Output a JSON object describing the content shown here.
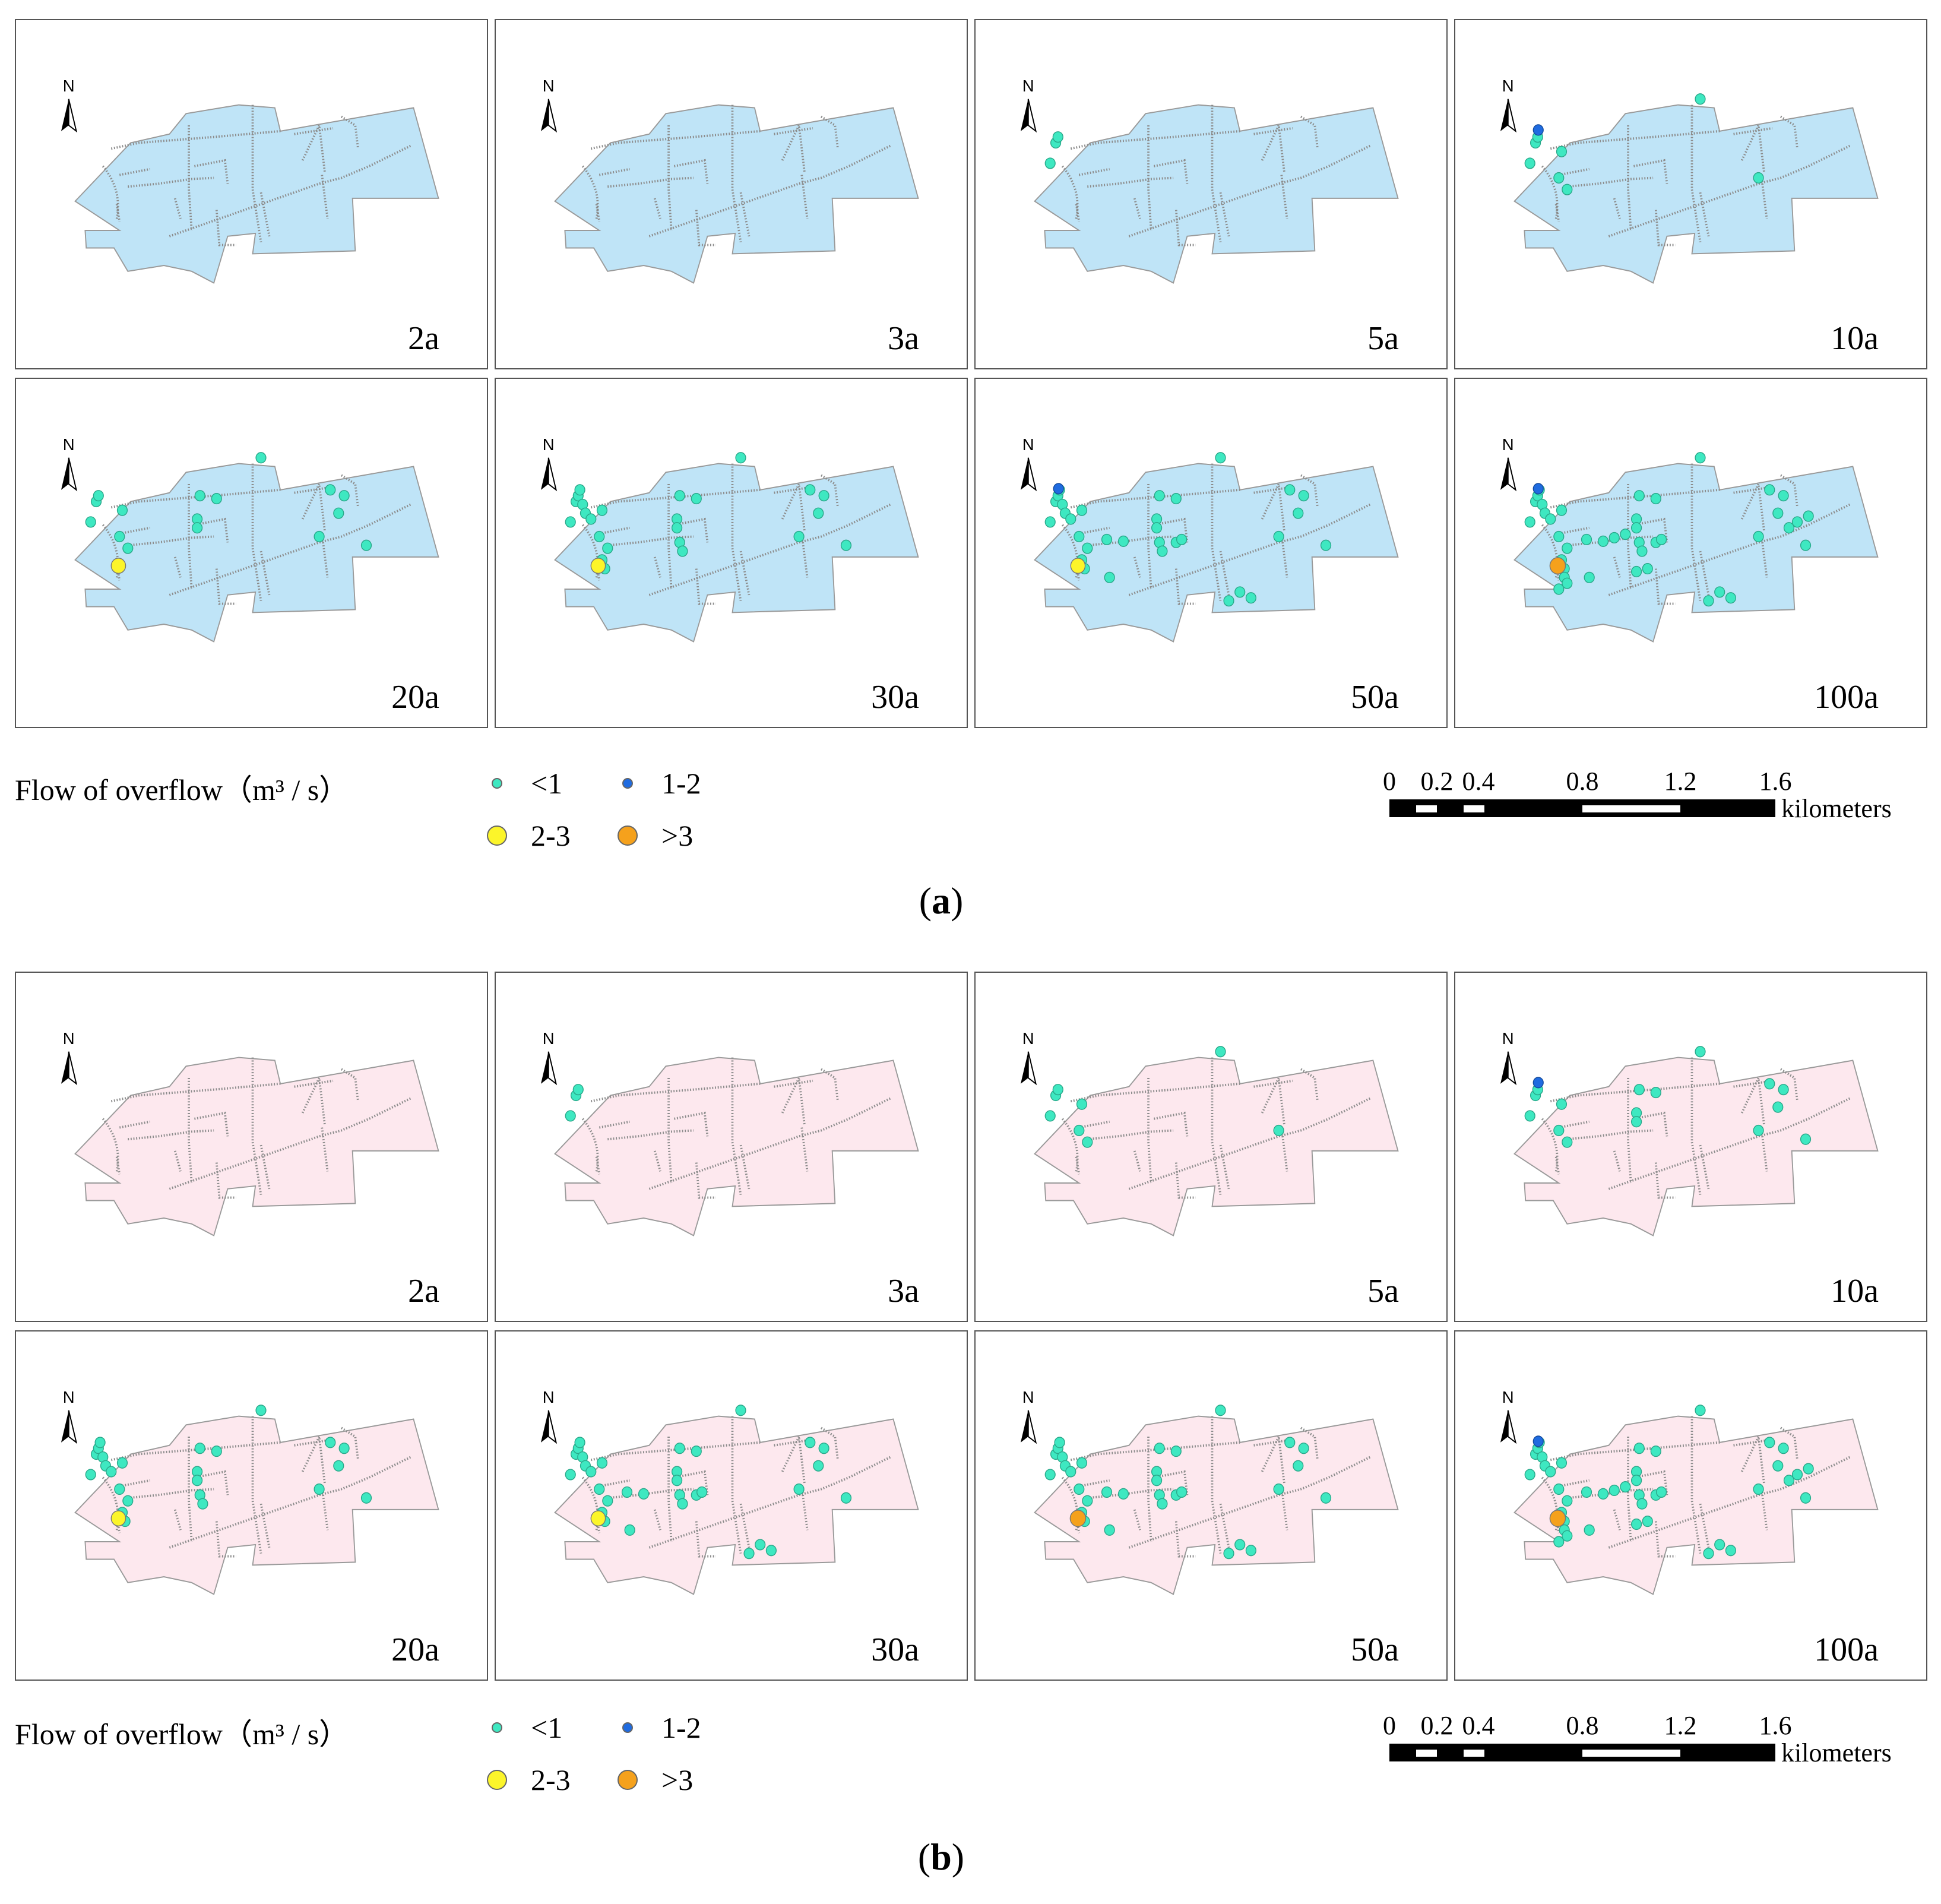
{
  "colors": {
    "fill_a": "#bfe4f7",
    "fill_b": "#fde8ee",
    "outline": "#9a9a9a",
    "pipe": "#8c8c8c",
    "lt1": "#3ee8c1",
    "c1_2": "#1f6be0",
    "c2_3": "#fcf52a",
    "gt3": "#f5a11c"
  },
  "groups": [
    {
      "sublabel_prefix": "(",
      "sublabel_letter": "a",
      "sublabel_suffix": ")",
      "fill_color": "#bfe4f7",
      "panels": [
        {
          "label": "2a",
          "level": 0,
          "c1": 0,
          "c2": 0,
          "c3": 0
        },
        {
          "label": "3a",
          "level": 0,
          "c1": 0,
          "c2": 0,
          "c3": 0
        },
        {
          "label": "5a",
          "level": 1,
          "c1": 0,
          "c2": 0,
          "c3": 0
        },
        {
          "label": "10a",
          "level": 2,
          "c1": 1,
          "c2": 0,
          "c3": 0
        },
        {
          "label": "20a",
          "level": 3,
          "c1": 0,
          "c2": 1,
          "c3": 0
        },
        {
          "label": "30a",
          "level": 4,
          "c1": 0,
          "c2": 1,
          "c3": 0
        },
        {
          "label": "50a",
          "level": 5,
          "c1": 1,
          "c2": 1,
          "c3": 0
        },
        {
          "label": "100a",
          "level": 6,
          "c1": 1,
          "c2": 0,
          "c3": 1
        }
      ]
    },
    {
      "sublabel_prefix": "(",
      "sublabel_letter": "b",
      "sublabel_suffix": ")",
      "fill_color": "#fde8ee",
      "panels": [
        {
          "label": "2a",
          "level": 0,
          "c1": 0,
          "c2": 0,
          "c3": 0
        },
        {
          "label": "3a",
          "level": 1,
          "c1": 0,
          "c2": 0,
          "c3": 0
        },
        {
          "label": "5a",
          "level": 2,
          "c1": 0,
          "c2": 0,
          "c3": 0
        },
        {
          "label": "10a",
          "level": 3,
          "c1": 1,
          "c2": 0,
          "c3": 0
        },
        {
          "label": "20a",
          "level": 4,
          "c1": 0,
          "c2": 1,
          "c3": 0
        },
        {
          "label": "30a",
          "level": 5,
          "c1": 0,
          "c2": 1,
          "c3": 0
        },
        {
          "label": "50a",
          "level": 5,
          "c1": 0,
          "c2": 0,
          "c3": 1
        },
        {
          "label": "100a",
          "level": 6,
          "c1": 1,
          "c2": 0,
          "c3": 1
        }
      ]
    }
  ],
  "north_label": "N",
  "legend": {
    "title": "Flow of overflow（m³ / s）",
    "items": [
      {
        "label": "<1",
        "color": "#3ee8c1"
      },
      {
        "label": "1-2",
        "color": "#1f6be0"
      },
      {
        "label": "2-3",
        "color": "#fcf52a"
      },
      {
        "label": ">3",
        "color": "#f5a11c"
      }
    ]
  },
  "scale": {
    "ticks": [
      "0",
      "0.2",
      "0.4",
      "0.8",
      "1.2",
      "1.6"
    ],
    "unit": "kilometers"
  }
}
